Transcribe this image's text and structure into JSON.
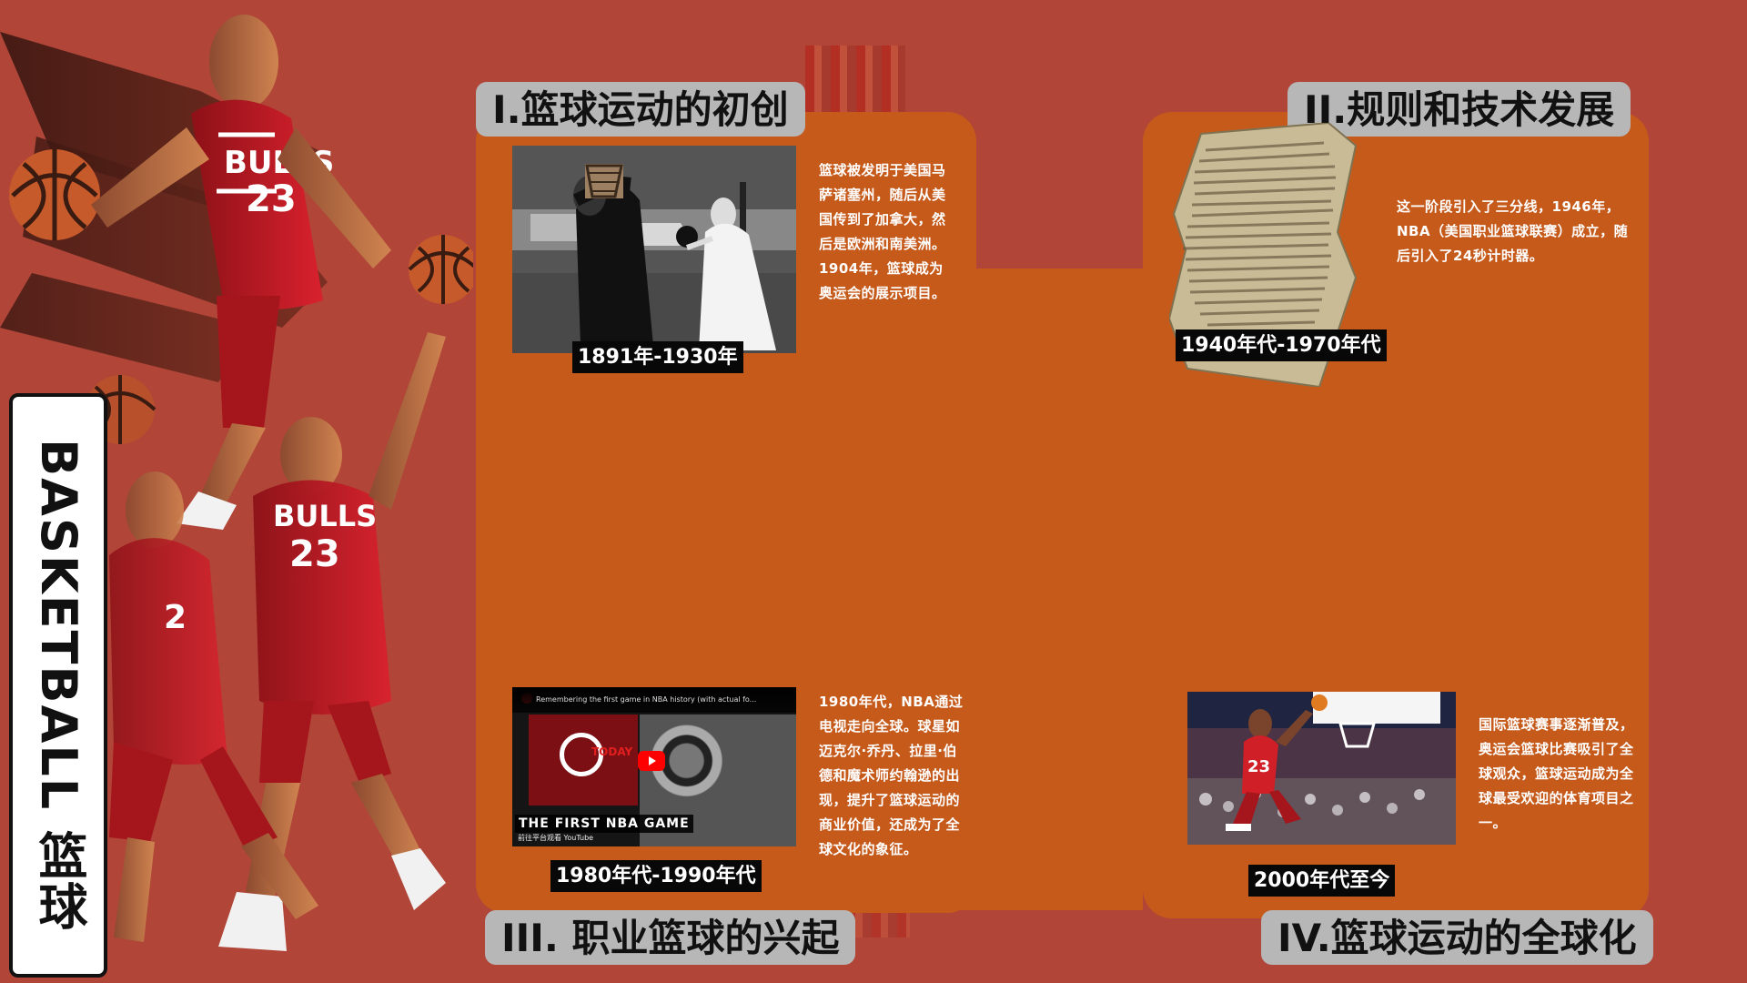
{
  "section_headings": {
    "part1": "I.篮球运动的初创",
    "part2": "II.规则和技术发展",
    "part3": "III. 职业篮球的兴起",
    "part4": "IV.篮球运动的全球化"
  },
  "timeline": {
    "period1": "1891年-1930年",
    "period2": "1940年代-1970年代",
    "period3": "1980年代-1990年代",
    "period4": "2000年代至今"
  },
  "descriptions": {
    "part1": "篮球被发明于美国马萨诸塞州，随后从美国传到了加拿大，然后是欧洲和南美洲。1904年，篮球成为奥运会的展示项目。",
    "part2": "这一阶段引入了三分线，1946年，NBA（美国职业篮球联赛）成立，随后引入了24秒计时器。",
    "part3": "1980年代，NBA通过电视走向全球。球星如迈克尔·乔丹、拉里·伯德和魔术师约翰逊的出现，提升了篮球运动的商业价值，还成为了全球文化的象征。",
    "part4": "国际篮球赛事逐渐普及，奥运会篮球比赛吸引了全球观众，篮球运动成为全球最受欢迎的体育项目之一。"
  },
  "side_banner": {
    "title": "BASKETBALL 篮球"
  },
  "video_preview": {
    "header": "Remembering the first game in NBA history (with actual fo...",
    "channel_text": "TODAY",
    "title": "THE FIRST NBA GAME",
    "subtitle": "前往平台观看  YouTube"
  },
  "icons": {
    "player": "basketball-player-illustration",
    "ball": "basketball-icon",
    "play": "youtube-play-icon"
  },
  "colors": {
    "background": "#b04538",
    "panel": "#c65a1b",
    "heading": "#b7b7b7",
    "caption": "#080808"
  }
}
